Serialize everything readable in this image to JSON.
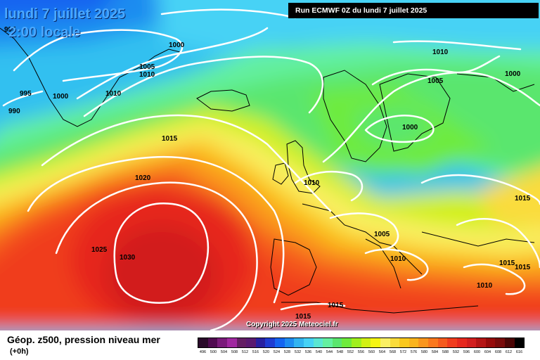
{
  "header": {
    "date": "lundi 7 juillet 2025",
    "time": "2:00 locale",
    "run": "Run ECMWF 0Z du lundi 7 juillet 2025"
  },
  "footer": {
    "copyright": "Copyright 2025 Meteociel.fr",
    "title": "Géop. z500, pression niveau mer",
    "subtitle": "(+0h)"
  },
  "isobars": [
    {
      "value": "995"
    },
    {
      "value": "990"
    },
    {
      "value": "995"
    },
    {
      "value": "1000"
    },
    {
      "value": "1000"
    },
    {
      "value": "1005"
    },
    {
      "value": "1010"
    },
    {
      "value": "1010"
    },
    {
      "value": "1015"
    },
    {
      "value": "1020"
    },
    {
      "value": "1025"
    },
    {
      "value": "1030"
    },
    {
      "value": "1010"
    },
    {
      "value": "1005"
    },
    {
      "value": "1000"
    },
    {
      "value": "1000"
    },
    {
      "value": "1010"
    },
    {
      "value": "1005"
    },
    {
      "value": "1010"
    },
    {
      "value": "1015"
    },
    {
      "value": "1015"
    },
    {
      "value": "1015"
    },
    {
      "value": "1010"
    },
    {
      "value": "1015"
    },
    {
      "value": "1015"
    }
  ],
  "legend": {
    "colors": [
      "#2a0a2a",
      "#500a50",
      "#7a1a7a",
      "#a028a0",
      "#641e64",
      "#5a1a70",
      "#2820a0",
      "#1e3cd2",
      "#1464f0",
      "#1e8cf0",
      "#32b4f0",
      "#46d2f5",
      "#5ae6d2",
      "#64f0a0",
      "#5ae66e",
      "#6eeb3c",
      "#a0f01e",
      "#d2f014",
      "#f5f514",
      "#faf064",
      "#fadc3c",
      "#fac81e",
      "#fab41e",
      "#fa961e",
      "#fa781e",
      "#f55a1e",
      "#f03c1e",
      "#e6281e",
      "#d21e1e",
      "#b41414",
      "#960a0a",
      "#780a0a",
      "#4a0505",
      "#000000"
    ],
    "ticks": [
      "496",
      "500",
      "504",
      "508",
      "512",
      "516",
      "520",
      "524",
      "528",
      "532",
      "536",
      "540",
      "544",
      "548",
      "552",
      "556",
      "560",
      "564",
      "568",
      "572",
      "576",
      "580",
      "584",
      "588",
      "592",
      "596",
      "600",
      "604",
      "608",
      "612",
      "616"
    ]
  }
}
